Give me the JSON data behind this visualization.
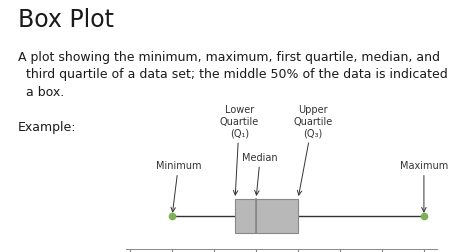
{
  "title": "Box Plot",
  "description": "A plot showing the minimum, maximum, first quartile, median, and\n  third quartile of a data set; the middle 50% of the data is indicated by\n  a box.",
  "example_label": "Example:",
  "minimum": 10,
  "q1": 25,
  "median": 30,
  "q3": 40,
  "maximum": 70,
  "xlim": [
    0,
    70
  ],
  "xticks": [
    0,
    10,
    20,
    30,
    40,
    50,
    60,
    70
  ],
  "box_color": "#b8b8b8",
  "box_edge_color": "#888888",
  "whisker_color": "#333333",
  "dot_color": "#7db057",
  "title_fontsize": 17,
  "body_fontsize": 9.0,
  "label_fontsize": 7.0,
  "background_color": "#ffffff"
}
